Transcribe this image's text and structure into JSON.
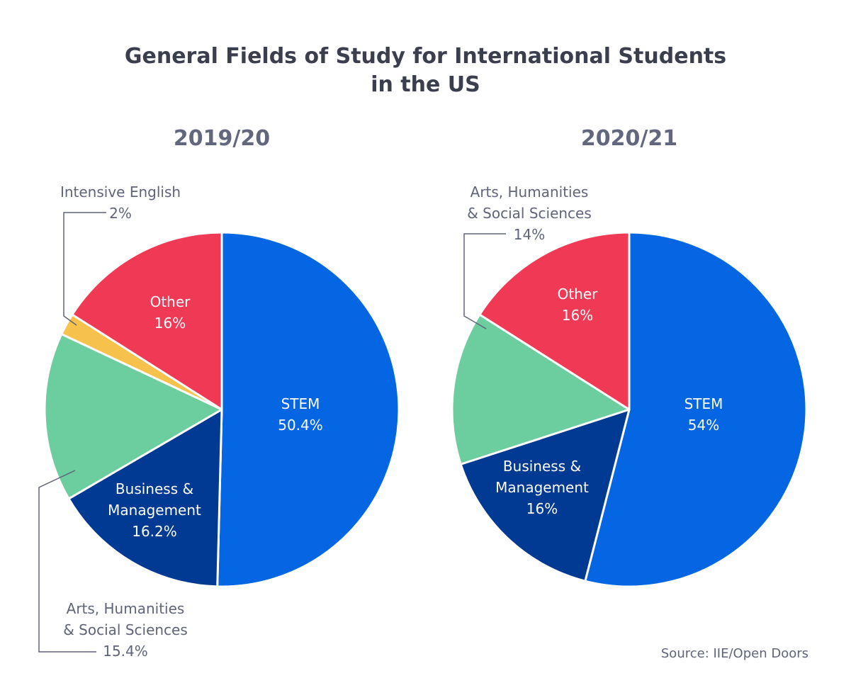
{
  "chart_data": [
    {
      "type": "pie",
      "title": "2019/20",
      "categories": [
        "STEM",
        "Business & Management",
        "Arts, Humanities & Social Sciences",
        "Intensive English",
        "Other"
      ],
      "values": [
        50.4,
        16.2,
        15.4,
        2,
        16
      ],
      "labels": [
        "50.4%",
        "16.2%",
        "15.4%",
        "2%",
        "16%"
      ],
      "colors": [
        "#0466e2",
        "#013a92",
        "#6ccd9e",
        "#f7c24c",
        "#f03a55"
      ]
    },
    {
      "type": "pie",
      "title": "2020/21",
      "categories": [
        "STEM",
        "Business & Management",
        "Arts, Humanities & Social Sciences",
        "Other"
      ],
      "values": [
        54,
        16,
        14,
        16
      ],
      "labels": [
        "54%",
        "16%",
        "14%",
        "16%"
      ],
      "colors": [
        "#0466e2",
        "#013a92",
        "#6ccd9e",
        "#f03a55"
      ]
    }
  ],
  "title_line1": "General Fields of Study for International Students",
  "title_line2": "in the US",
  "text": {
    "stem": "STEM",
    "business1": "Business &",
    "business2": "Management",
    "arts1": "Arts, Humanities",
    "arts2": "& Social Sciences",
    "english": "Intensive English",
    "other": "Other"
  },
  "source": "Source: IIE/Open Doors"
}
